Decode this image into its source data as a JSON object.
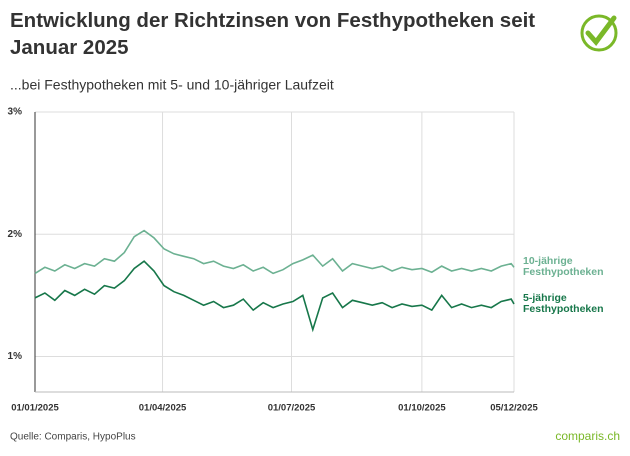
{
  "chart_data": {
    "type": "line",
    "title": "Entwicklung der Richtzinsen von Festhypotheken seit Januar 2025",
    "subtitle": "...bei Festhypotheken mit 5- und 10-jähriger Laufzeit",
    "source": "Quelle: Comparis, HypoPlus",
    "brand": "comparis.ch",
    "x": [
      "01/01/2025",
      "08/01/2025",
      "15/01/2025",
      "22/01/2025",
      "29/01/2025",
      "05/02/2025",
      "12/02/2025",
      "19/02/2025",
      "26/02/2025",
      "05/03/2025",
      "12/03/2025",
      "19/03/2025",
      "26/03/2025",
      "02/04/2025",
      "09/04/2025",
      "16/04/2025",
      "23/04/2025",
      "30/04/2025",
      "07/05/2025",
      "14/05/2025",
      "21/05/2025",
      "28/05/2025",
      "04/06/2025",
      "11/06/2025",
      "18/06/2025",
      "25/06/2025",
      "02/07/2025",
      "09/07/2025",
      "16/07/2025",
      "23/07/2025",
      "30/07/2025",
      "06/08/2025",
      "13/08/2025",
      "20/08/2025",
      "27/08/2025",
      "03/09/2025",
      "10/09/2025",
      "17/09/2025",
      "24/09/2025",
      "01/10/2025",
      "08/10/2025",
      "15/10/2025",
      "22/10/2025",
      "29/10/2025",
      "05/11/2025",
      "12/11/2025",
      "19/11/2025",
      "26/11/2025",
      "03/12/2025",
      "05/12/2025"
    ],
    "series": [
      {
        "name": "10-jährige Festhypotheken",
        "color": "#6cb192",
        "values": [
          1.68,
          1.73,
          1.7,
          1.75,
          1.72,
          1.76,
          1.74,
          1.8,
          1.78,
          1.85,
          1.98,
          2.03,
          1.97,
          1.88,
          1.84,
          1.82,
          1.8,
          1.76,
          1.78,
          1.74,
          1.72,
          1.75,
          1.7,
          1.73,
          1.68,
          1.71,
          1.76,
          1.79,
          1.83,
          1.74,
          1.8,
          1.7,
          1.76,
          1.74,
          1.72,
          1.74,
          1.7,
          1.73,
          1.71,
          1.72,
          1.69,
          1.74,
          1.7,
          1.72,
          1.7,
          1.72,
          1.7,
          1.74,
          1.76,
          1.73
        ]
      },
      {
        "name": "5-jährige Festhypotheken",
        "color": "#17774a",
        "values": [
          1.48,
          1.52,
          1.46,
          1.54,
          1.5,
          1.55,
          1.51,
          1.58,
          1.56,
          1.62,
          1.72,
          1.78,
          1.7,
          1.58,
          1.53,
          1.5,
          1.46,
          1.42,
          1.45,
          1.4,
          1.42,
          1.47,
          1.38,
          1.44,
          1.4,
          1.43,
          1.45,
          1.5,
          1.22,
          1.48,
          1.52,
          1.4,
          1.46,
          1.44,
          1.42,
          1.44,
          1.4,
          1.43,
          1.41,
          1.42,
          1.38,
          1.5,
          1.4,
          1.43,
          1.4,
          1.42,
          1.4,
          1.45,
          1.47,
          1.43
        ]
      }
    ],
    "xlim": [
      "01/01/2025",
      "05/12/2025"
    ],
    "xticks": [
      "01/01/2025",
      "01/04/2025",
      "01/07/2025",
      "01/10/2025",
      "05/12/2025"
    ],
    "ylim": [
      0.71,
      3
    ],
    "yticks": [
      {
        "value": 1,
        "label": "1%"
      },
      {
        "value": 2,
        "label": "2%"
      },
      {
        "value": 3,
        "label": "3%"
      }
    ],
    "grid": true
  }
}
